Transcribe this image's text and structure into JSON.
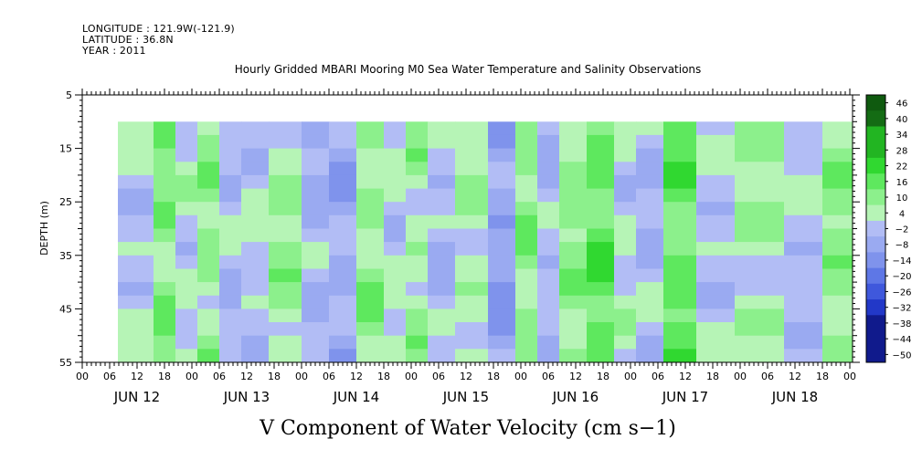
{
  "header": {
    "longitude": "LONGITUDE : 121.9W(-121.9)",
    "latitude": "LATITUDE : 36.8N",
    "year": "YEAR : 2011"
  },
  "chart_data": {
    "type": "heatmap",
    "title": "Hourly Gridded MBARI Mooring M0 Sea Water Temperature and Salinity Observations",
    "xlabel": "V Component of Water Velocity (cm s−1)",
    "ylabel": "DEPTH (m)",
    "y_ticks": [
      "5",
      "15",
      "25",
      "35",
      "45",
      "55"
    ],
    "ylim": [
      5,
      55
    ],
    "hour_ticks": [
      "00",
      "06",
      "12",
      "18",
      "00",
      "06",
      "12",
      "18",
      "00",
      "06",
      "12",
      "18",
      "00",
      "06",
      "12",
      "18",
      "00",
      "06",
      "12",
      "18",
      "00",
      "06",
      "12",
      "18",
      "00",
      "06",
      "12",
      "18",
      "00"
    ],
    "day_labels": [
      "JUN 12",
      "JUN 13",
      "JUN 14",
      "JUN 15",
      "JUN 16",
      "JUN 17",
      "JUN 18"
    ],
    "colorbar": {
      "labels": [
        "46",
        "40",
        "34",
        "28",
        "22",
        "16",
        "10",
        "4",
        "−2",
        "−8",
        "−14",
        "−20",
        "−26",
        "−32",
        "−38",
        "−44",
        "−50"
      ]
    },
    "data_depth_range": [
      10,
      55
    ],
    "column_means": [
      {
        "day": 12.3,
        "v": -4
      },
      {
        "day": 12.5,
        "v": 8
      },
      {
        "day": 12.7,
        "v": -2
      },
      {
        "day": 12.9,
        "v": 5
      },
      {
        "day": 13.1,
        "v": -6
      },
      {
        "day": 13.3,
        "v": -4
      },
      {
        "day": 13.6,
        "v": 4
      },
      {
        "day": 13.9,
        "v": -8
      },
      {
        "day": 14.1,
        "v": -10
      },
      {
        "day": 14.4,
        "v": 6
      },
      {
        "day": 14.6,
        "v": -2
      },
      {
        "day": 14.8,
        "v": 3
      },
      {
        "day": 15.0,
        "v": -6
      },
      {
        "day": 15.3,
        "v": 2
      },
      {
        "day": 15.6,
        "v": -12
      },
      {
        "day": 15.8,
        "v": 6
      },
      {
        "day": 16.0,
        "v": -6
      },
      {
        "day": 16.2,
        "v": 6
      },
      {
        "day": 16.5,
        "v": 12
      },
      {
        "day": 16.7,
        "v": -2
      },
      {
        "day": 16.9,
        "v": -6
      },
      {
        "day": 17.2,
        "v": 12
      },
      {
        "day": 17.5,
        "v": -4
      },
      {
        "day": 17.9,
        "v": 2
      },
      {
        "day": 18.4,
        "v": -4
      },
      {
        "day": 18.6,
        "v": 6
      }
    ]
  }
}
